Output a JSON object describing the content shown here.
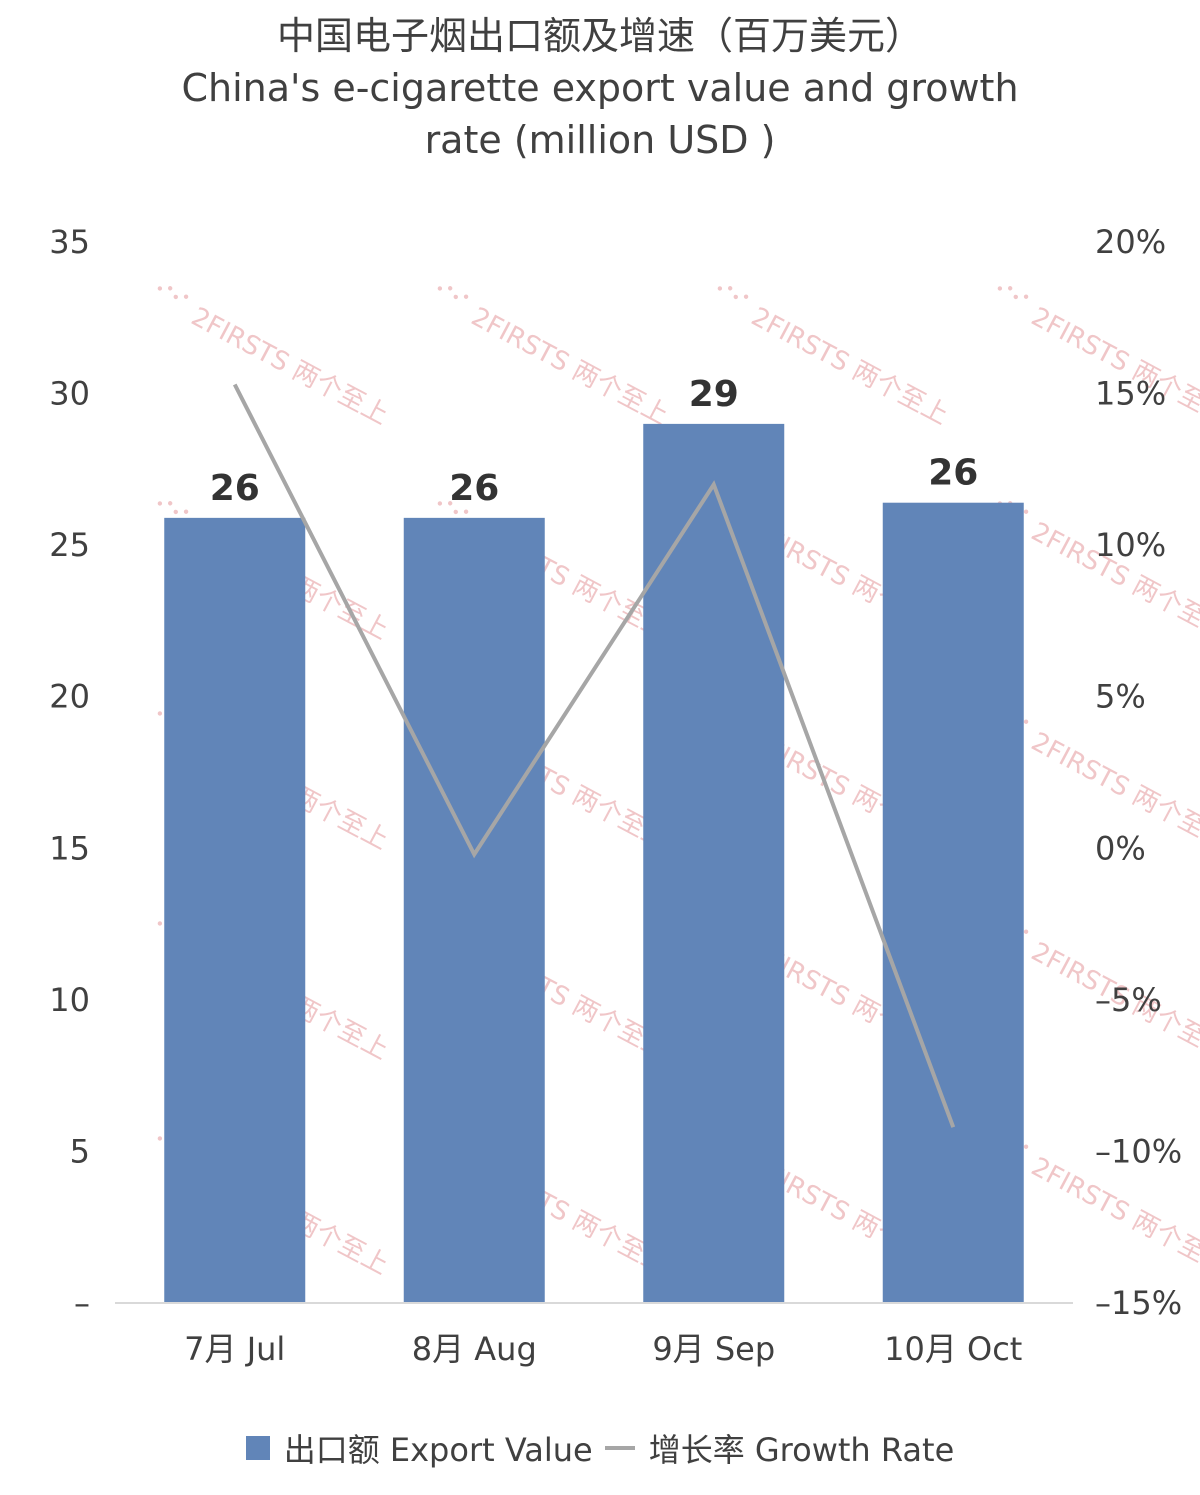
{
  "chart_data": {
    "type": "bar",
    "title": "中国电子烟出口额及增速（百万美元）",
    "subtitle_lines": [
      "China's e-cigarette export value and growth",
      "rate (million USD )"
    ],
    "categories": [
      "7月 Jul",
      "8月 Aug",
      "9月 Sep",
      "10月 Oct"
    ],
    "series": [
      {
        "name": "出口额 Export Value",
        "type": "bar",
        "axis": "left",
        "color": "#6185b8",
        "values": [
          25.9,
          25.9,
          29.0,
          26.4
        ],
        "data_labels": [
          "26",
          "26",
          "29",
          "26"
        ]
      },
      {
        "name": "增长率 Growth Rate",
        "type": "line",
        "axis": "right",
        "color": "#a6a6a6",
        "values": [
          0.153,
          -0.002,
          0.12,
          -0.092
        ]
      }
    ],
    "y_left": {
      "ylim": [
        0,
        35
      ],
      "ticks": [
        {
          "value": 35,
          "label": "35"
        },
        {
          "value": 30,
          "label": "30"
        },
        {
          "value": 25,
          "label": "25"
        },
        {
          "value": 20,
          "label": "20"
        },
        {
          "value": 15,
          "label": "15"
        },
        {
          "value": 10,
          "label": "10"
        },
        {
          "value": 5,
          "label": "5"
        },
        {
          "value": 0,
          "label": "–"
        }
      ]
    },
    "y_right": {
      "ylim": [
        -0.15,
        0.2
      ],
      "ticks": [
        {
          "value": 0.2,
          "label": "20%"
        },
        {
          "value": 0.15,
          "label": "15%"
        },
        {
          "value": 0.1,
          "label": "10%"
        },
        {
          "value": 0.05,
          "label": "5%"
        },
        {
          "value": 0,
          "label": "0%"
        },
        {
          "value": -0.05,
          "label": "–5%"
        },
        {
          "value": -0.1,
          "label": "–10%"
        },
        {
          "value": -0.15,
          "label": "–15%"
        }
      ]
    },
    "grid": false,
    "legend_position": "bottom"
  },
  "watermark": {
    "text": "2FIRSTS 两个至上",
    "color": "#f0c6c8"
  }
}
